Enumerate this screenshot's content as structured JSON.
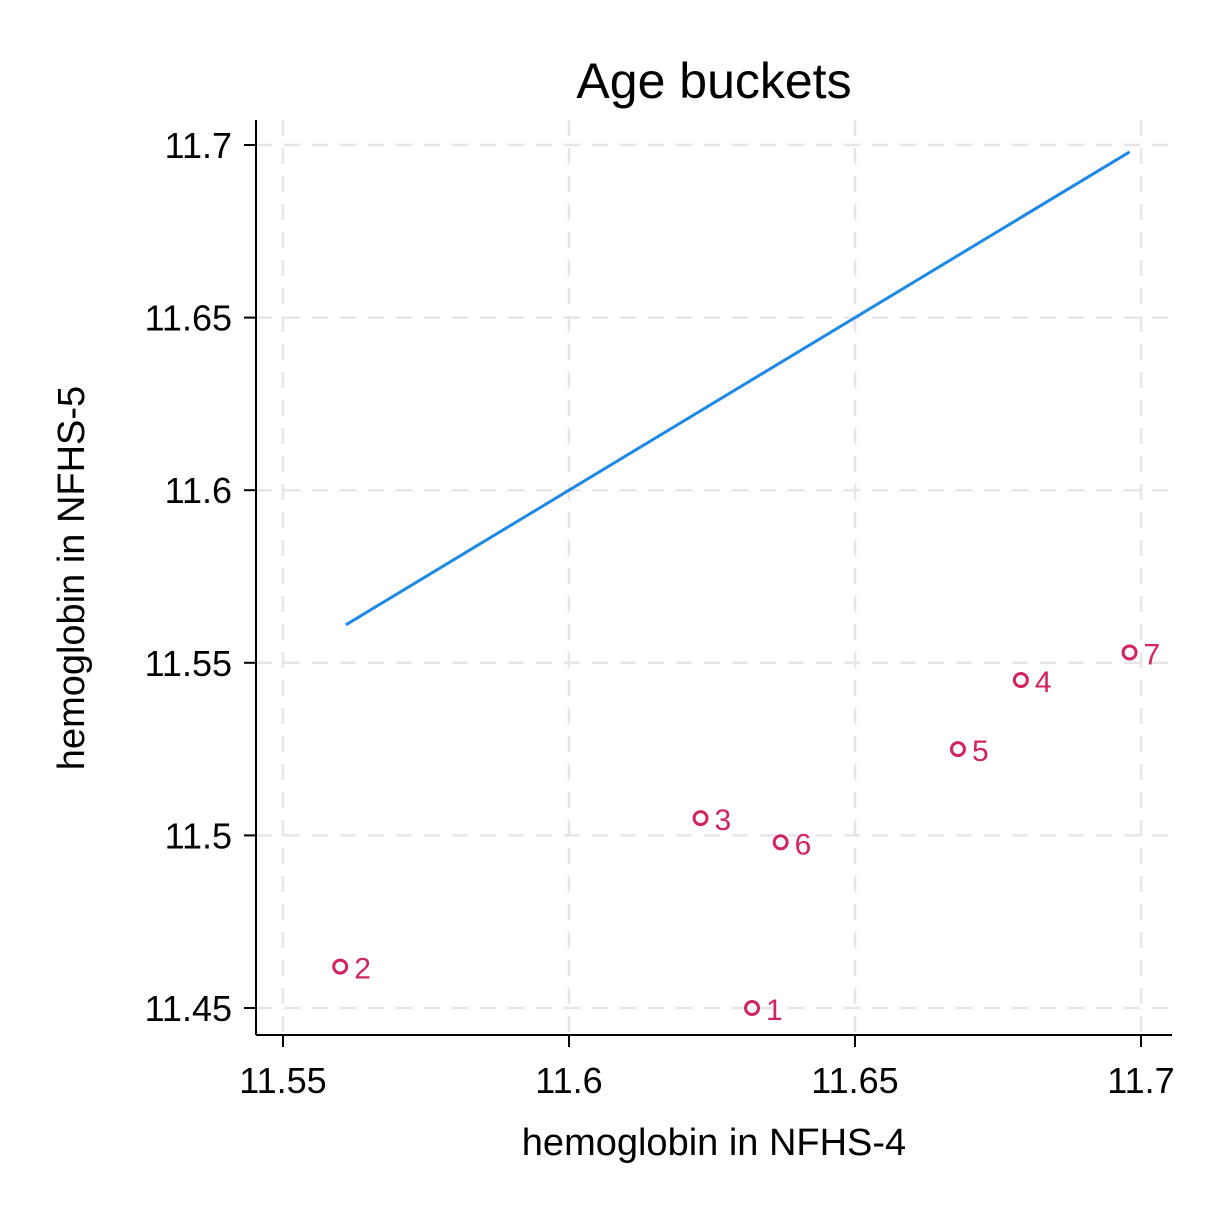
{
  "chart_data": {
    "type": "scatter",
    "title": "Age buckets",
    "xlabel": "hemoglobin in NFHS-4",
    "ylabel": "hemoglobin in NFHS-5",
    "xlim": [
      11.545,
      11.705
    ],
    "ylim": [
      11.443,
      11.708
    ],
    "xticks": [
      11.55,
      11.6,
      11.65,
      11.7
    ],
    "xtick_labels": [
      "11.55",
      "11.6",
      "11.65",
      "11.7"
    ],
    "yticks": [
      11.45,
      11.5,
      11.55,
      11.6,
      11.65,
      11.7
    ],
    "ytick_labels": [
      "11.45",
      "11.5",
      "11.55",
      "11.6",
      "11.65",
      "11.7"
    ],
    "grid": true,
    "marker_color": "#d0245e",
    "line_color": "#1e88e5",
    "points": [
      {
        "label": "1",
        "x": 11.632,
        "y": 11.45
      },
      {
        "label": "2",
        "x": 11.56,
        "y": 11.462
      },
      {
        "label": "3",
        "x": 11.623,
        "y": 11.505
      },
      {
        "label": "4",
        "x": 11.679,
        "y": 11.545
      },
      {
        "label": "5",
        "x": 11.668,
        "y": 11.525
      },
      {
        "label": "6",
        "x": 11.637,
        "y": 11.498
      },
      {
        "label": "7",
        "x": 11.698,
        "y": 11.553
      }
    ],
    "reference_line": {
      "x": [
        11.561,
        11.698
      ],
      "y": [
        11.561,
        11.698
      ]
    }
  }
}
